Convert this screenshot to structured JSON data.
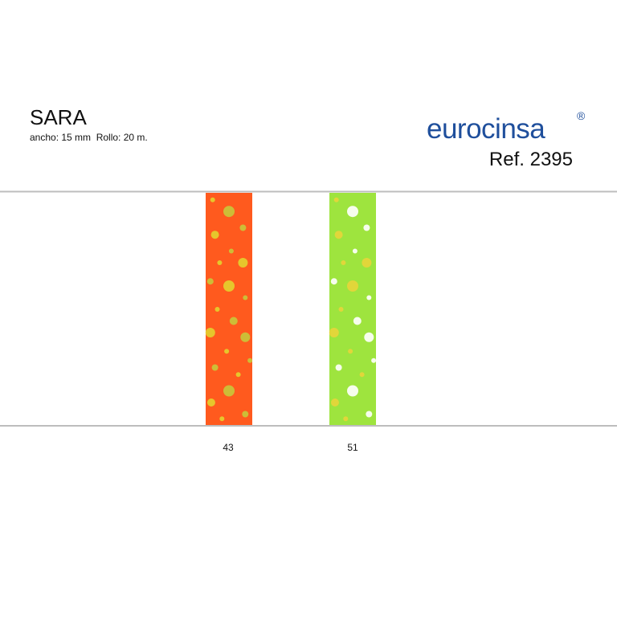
{
  "header": {
    "title": "SARA",
    "subtitle": "ancho: 15 mm  Rollo: 20 m.",
    "brand": "eurocinsa",
    "brand_mark": "®",
    "reference": "Ref. 2395"
  },
  "swatches": [
    {
      "code": "43"
    },
    {
      "code": "51"
    }
  ]
}
